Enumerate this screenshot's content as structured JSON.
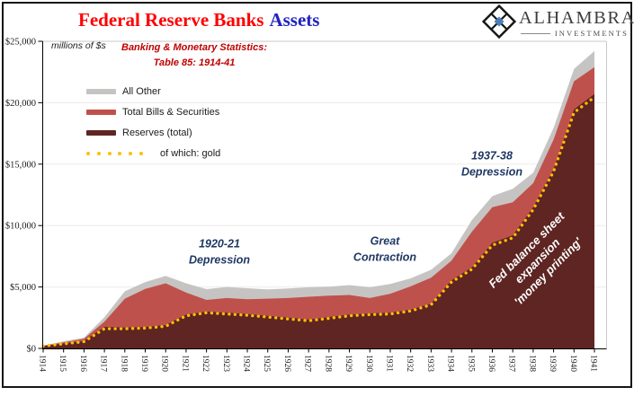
{
  "title": {
    "part1": "Federal Reserve Banks",
    "part2": "Assets"
  },
  "logo": {
    "name": "ALHAMBRA",
    "sub": "INVESTMENTS"
  },
  "chart_data": {
    "type": "area",
    "stacked": true,
    "title": "Federal Reserve Banks Assets",
    "units_label": "millions of $s",
    "source_note": "Banking & Monetary Statistics:\nTable 85: 1914-41",
    "x": [
      1914,
      1915,
      1916,
      1917,
      1918,
      1919,
      1920,
      1921,
      1922,
      1923,
      1924,
      1925,
      1926,
      1927,
      1928,
      1929,
      1930,
      1931,
      1932,
      1933,
      1934,
      1935,
      1936,
      1937,
      1938,
      1939,
      1940,
      1941
    ],
    "xlabel": "",
    "ylabel": "millions of $s",
    "ylim": [
      0,
      25000
    ],
    "ytick_step": 5000,
    "ytick_labels": [
      "$0",
      "$5,000",
      "$10,000",
      "$15,000",
      "$20,000",
      "$25,000"
    ],
    "grid": true,
    "series": [
      {
        "name": "Reserves (total)",
        "color": "#5E2522",
        "values": [
          200,
          400,
          600,
          1750,
          1700,
          1750,
          1900,
          2750,
          3000,
          2900,
          2800,
          2650,
          2500,
          2350,
          2550,
          2750,
          2850,
          2900,
          3150,
          3650,
          5550,
          6600,
          8600,
          9200,
          11500,
          14600,
          19450,
          20700
        ]
      },
      {
        "name": "Total Bills & Securities",
        "color": "#BF514C",
        "values": [
          10,
          100,
          180,
          420,
          2350,
          3100,
          3400,
          1800,
          950,
          1200,
          1200,
          1400,
          1600,
          1850,
          1750,
          1600,
          1250,
          1550,
          1900,
          2100,
          1600,
          2900,
          2900,
          2700,
          1950,
          2400,
          2300,
          2200
        ]
      },
      {
        "name": "All Other",
        "color": "#C6C4C2",
        "values": [
          20,
          80,
          100,
          370,
          600,
          550,
          600,
          750,
          875,
          900,
          900,
          750,
          775,
          775,
          725,
          800,
          875,
          800,
          650,
          650,
          600,
          950,
          900,
          1100,
          850,
          950,
          1000,
          1300
        ]
      }
    ],
    "line_series": {
      "name": "of which: gold",
      "color": "#FFC000",
      "style": "dotted",
      "values": [
        190,
        370,
        550,
        1600,
        1600,
        1650,
        1800,
        2650,
        2900,
        2800,
        2700,
        2550,
        2400,
        2250,
        2450,
        2650,
        2750,
        2800,
        3050,
        3550,
        5400,
        6450,
        8400,
        9000,
        11300,
        14400,
        19200,
        20450
      ]
    },
    "legend": [
      {
        "label": "All Other",
        "swatch": "line",
        "color": "#C6C4C2"
      },
      {
        "label": "Total Bills & Securities",
        "swatch": "line",
        "color": "#BF514C"
      },
      {
        "label": "Reserves (total)",
        "swatch": "line",
        "color": "#5E2522"
      },
      {
        "label": "of which: gold",
        "swatch": "dots",
        "color": "#FFC000"
      }
    ],
    "legend_position": "upper-left",
    "annotations": [
      {
        "text": "1920-21\nDepression"
      },
      {
        "text": "Great\nContraction"
      },
      {
        "text": "1937-38\nDepression"
      },
      {
        "text": "Fed balance sheet\nexpansion\n'money printing'"
      }
    ]
  }
}
